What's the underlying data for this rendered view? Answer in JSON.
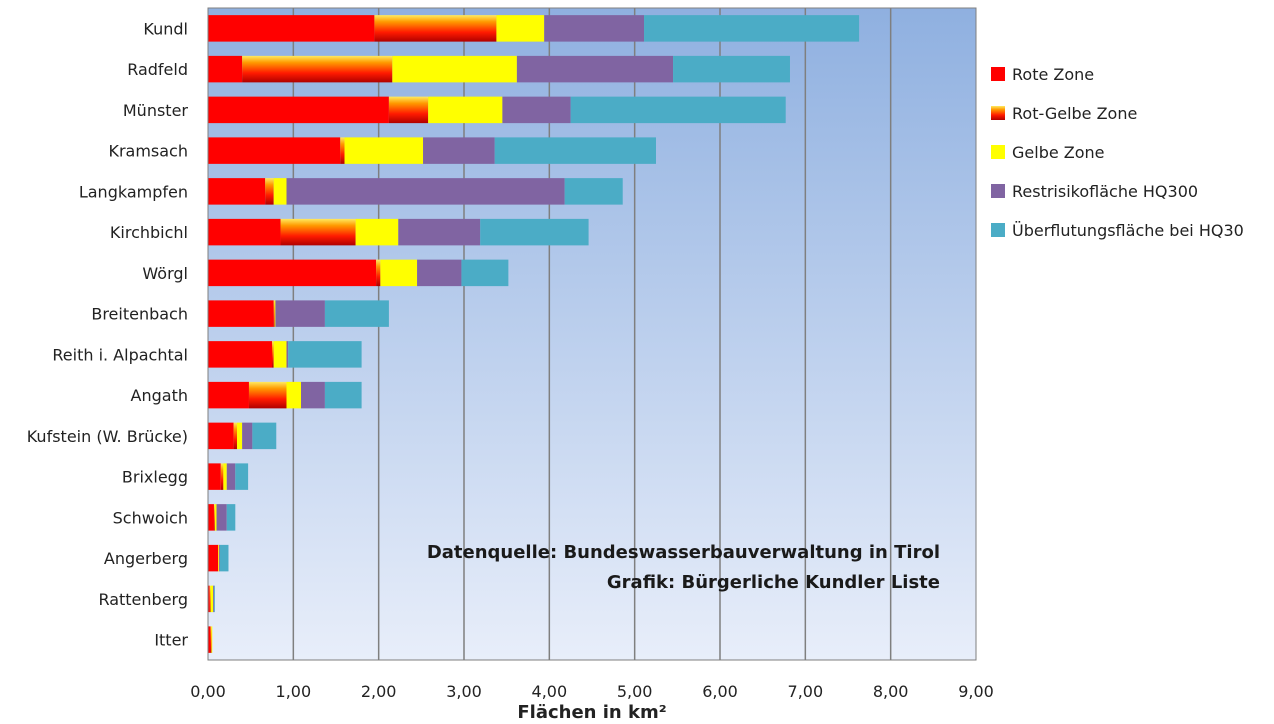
{
  "chart_data": {
    "type": "bar",
    "orientation": "horizontal",
    "stacked": true,
    "categories": [
      "Kundl",
      "Radfeld",
      "Münster",
      "Kramsach",
      "Langkampfen",
      "Kirchbichl",
      "Wörgl",
      "Breitenbach",
      "Reith i. Alpachtal",
      "Angath",
      "Kufstein (W. Brücke)",
      "Brixlegg",
      "Schwoich",
      "Angerberg",
      "Rattenberg",
      "Itter"
    ],
    "series": [
      {
        "name": "Rote Zone",
        "color": "#ff0000",
        "values": [
          1.95,
          0.4,
          2.12,
          1.55,
          0.67,
          0.85,
          1.97,
          0.77,
          0.75,
          0.48,
          0.3,
          0.15,
          0.07,
          0.12,
          0.02,
          0.03
        ]
      },
      {
        "name": "Rot-Gelbe Zone",
        "color": "gradient-red-yellow",
        "values": [
          1.43,
          1.76,
          0.46,
          0.05,
          0.1,
          0.88,
          0.05,
          0.01,
          0.02,
          0.44,
          0.04,
          0.03,
          0.01,
          0.0,
          0.01,
          0.01
        ]
      },
      {
        "name": "Gelbe Zone",
        "color": "#ffff00",
        "values": [
          0.56,
          1.46,
          0.87,
          0.92,
          0.15,
          0.5,
          0.43,
          0.01,
          0.15,
          0.17,
          0.06,
          0.04,
          0.02,
          0.01,
          0.03,
          0.01
        ]
      },
      {
        "name": "Restrisikofläche HQ300",
        "color": "#8064a2",
        "values": [
          1.17,
          1.83,
          0.8,
          0.84,
          3.26,
          0.96,
          0.52,
          0.58,
          0.02,
          0.28,
          0.12,
          0.1,
          0.12,
          0.01,
          0.01,
          0.0
        ]
      },
      {
        "name": "Überflutungsfläche bei HQ30",
        "color": "#4bacc6",
        "values": [
          2.52,
          1.37,
          2.52,
          1.89,
          0.68,
          1.27,
          0.55,
          0.75,
          0.86,
          0.43,
          0.28,
          0.15,
          0.1,
          0.1,
          0.01,
          0.0
        ]
      }
    ],
    "xlabel": "Flächen in km²",
    "ylabel": "",
    "xlim": [
      0,
      9
    ],
    "xticks": [
      "0,00",
      "1,00",
      "2,00",
      "3,00",
      "4,00",
      "5,00",
      "6,00",
      "7,00",
      "8,00",
      "9,00"
    ],
    "grid": "vertical",
    "legend_position": "right",
    "annotations": [
      "Datenquelle: Bundeswasserbauverwaltung in Tirol",
      "Grafik: Bürgerliche Kundler Liste"
    ],
    "colors": {
      "plot_bg_top": "#8fb0e0",
      "plot_bg_bottom": "#e8eefa",
      "gridline": "#7f7f7f"
    }
  }
}
